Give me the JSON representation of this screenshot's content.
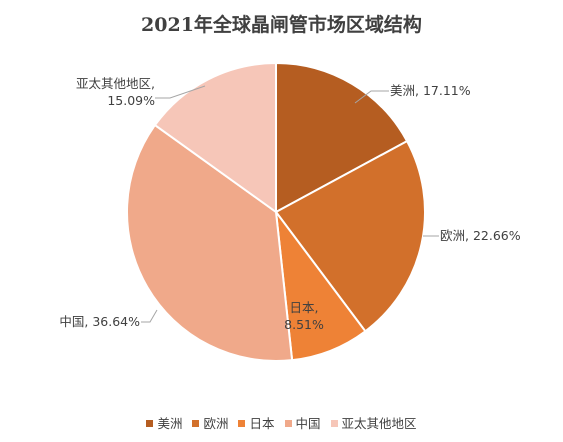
{
  "chart_data": {
    "type": "pie",
    "title": "2021年全球晶闸管市场区域结构",
    "categories": [
      "美洲",
      "欧洲",
      "日本",
      "中国",
      "亚太其他地区"
    ],
    "values": [
      17.11,
      22.66,
      8.51,
      36.64,
      15.09
    ],
    "data_labels": [
      "17.11%",
      "22.66%",
      "8.51%",
      "36.64%",
      "15.09%"
    ],
    "colors": [
      "#B55D21",
      "#D2702B",
      "#EE8236",
      "#F0A98A",
      "#F6C6B8"
    ],
    "label_separator": ",",
    "legend": "bottom"
  }
}
